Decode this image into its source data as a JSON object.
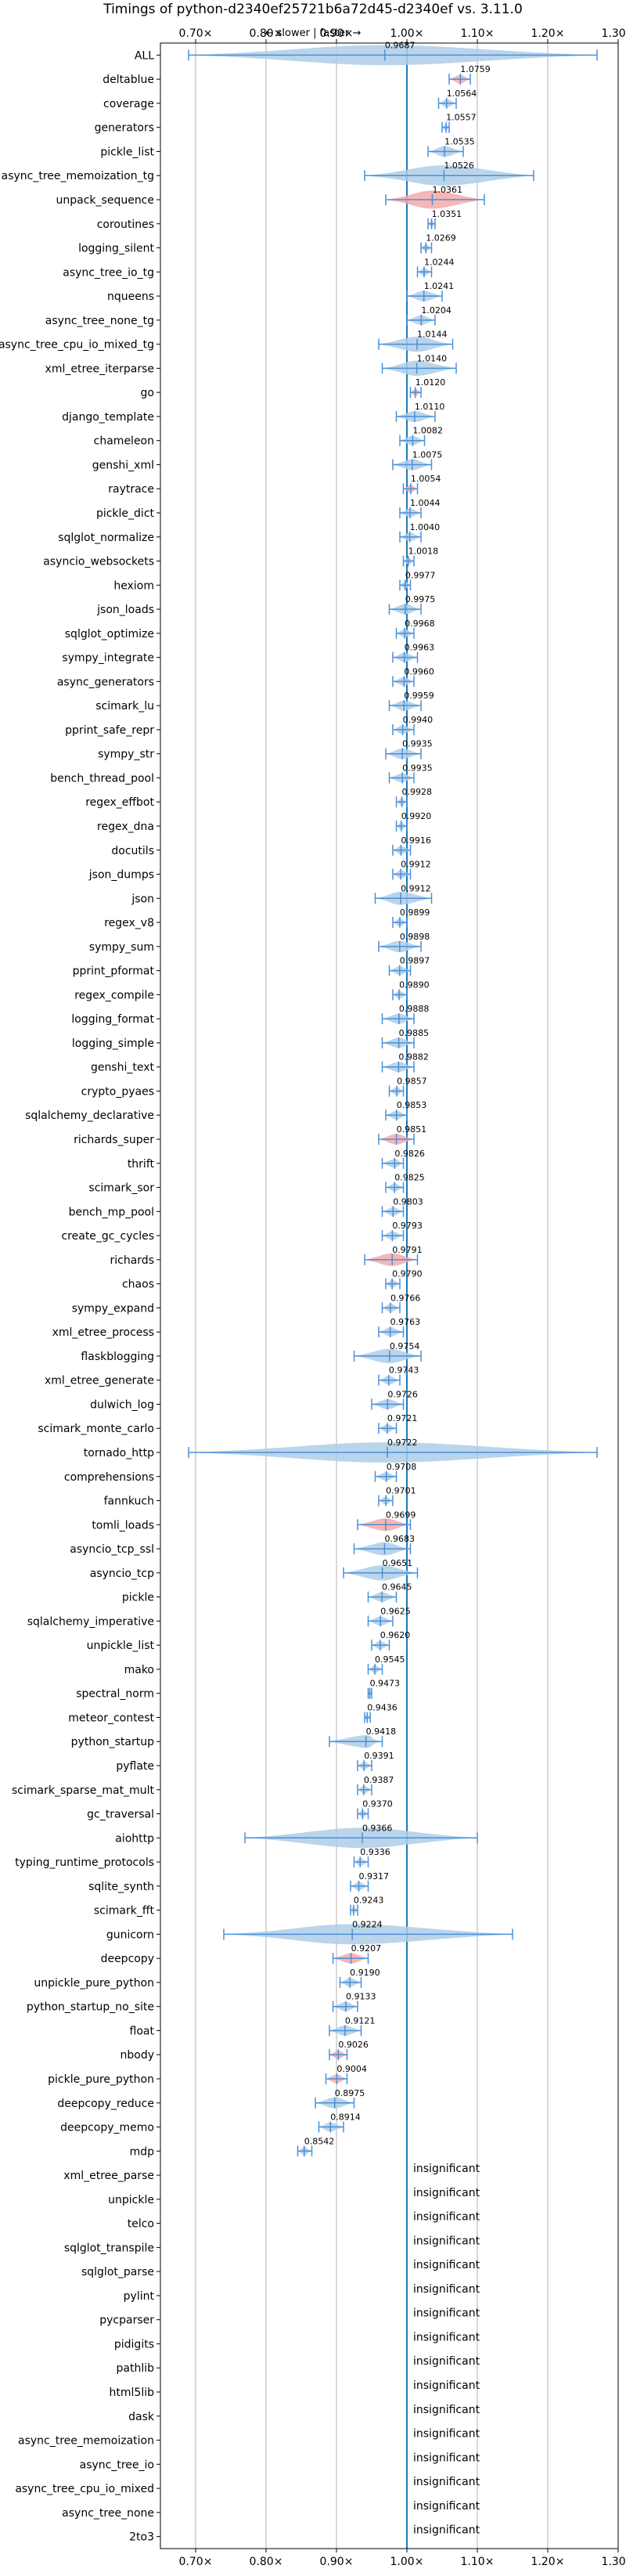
{
  "chart_data": {
    "type": "violin",
    "title": "Timings of python-d2340ef25721b6a72d45-d2340ef vs. 3.11.0",
    "subtitle": "← slower | faster →",
    "xlim": [
      0.65,
      1.3
    ],
    "xticks": [
      "0.70×",
      "0.80×",
      "0.90×",
      "1.00×",
      "1.10×",
      "1.20×",
      "1.30×"
    ],
    "reference_line": 1.0,
    "insignificant_label": "insignificant",
    "colors": {
      "faster": "#4a90d9",
      "violin": "#aecde8",
      "slower": "#f4a9a9",
      "grid": "#b0b0b0"
    },
    "benchmarks": [
      {
        "name": "ALL",
        "value": 0.9687,
        "label": "0.9687",
        "low": 0.69,
        "high": 1.27,
        "slower": false
      },
      {
        "name": "deltablue",
        "value": 1.0759,
        "label": "1.0759",
        "low": 1.06,
        "high": 1.09,
        "slower": true
      },
      {
        "name": "coverage",
        "value": 1.0564,
        "label": "1.0564",
        "low": 1.045,
        "high": 1.07,
        "slower": false
      },
      {
        "name": "generators",
        "value": 1.0557,
        "label": "1.0557",
        "low": 1.05,
        "high": 1.06,
        "slower": false
      },
      {
        "name": "pickle_list",
        "value": 1.0535,
        "label": "1.0535",
        "low": 1.03,
        "high": 1.08,
        "slower": false
      },
      {
        "name": "async_tree_memoization_tg",
        "value": 1.0526,
        "label": "1.0526",
        "low": 0.94,
        "high": 1.18,
        "slower": false
      },
      {
        "name": "unpack_sequence",
        "value": 1.0361,
        "label": "1.0361",
        "low": 0.97,
        "high": 1.11,
        "slower": true
      },
      {
        "name": "coroutines",
        "value": 1.0351,
        "label": "1.0351",
        "low": 1.03,
        "high": 1.04,
        "slower": false
      },
      {
        "name": "logging_silent",
        "value": 1.0269,
        "label": "1.0269",
        "low": 1.02,
        "high": 1.035,
        "slower": false
      },
      {
        "name": "async_tree_io_tg",
        "value": 1.0244,
        "label": "1.0244",
        "low": 1.015,
        "high": 1.035,
        "slower": false
      },
      {
        "name": "nqueens",
        "value": 1.0241,
        "label": "1.0241",
        "low": 1.0,
        "high": 1.05,
        "slower": false
      },
      {
        "name": "async_tree_none_tg",
        "value": 1.0204,
        "label": "1.0204",
        "low": 1.0,
        "high": 1.04,
        "slower": false
      },
      {
        "name": "async_tree_cpu_io_mixed_tg",
        "value": 1.0144,
        "label": "1.0144",
        "low": 0.96,
        "high": 1.065,
        "slower": false
      },
      {
        "name": "xml_etree_iterparse",
        "value": 1.014,
        "label": "1.0140",
        "low": 0.965,
        "high": 1.07,
        "slower": false
      },
      {
        "name": "go",
        "value": 1.012,
        "label": "1.0120",
        "low": 1.005,
        "high": 1.02,
        "slower": true
      },
      {
        "name": "django_template",
        "value": 1.011,
        "label": "1.0110",
        "low": 0.985,
        "high": 1.04,
        "slower": false
      },
      {
        "name": "chameleon",
        "value": 1.0082,
        "label": "1.0082",
        "low": 0.99,
        "high": 1.025,
        "slower": false
      },
      {
        "name": "genshi_xml",
        "value": 1.0075,
        "label": "1.0075",
        "low": 0.98,
        "high": 1.035,
        "slower": false
      },
      {
        "name": "raytrace",
        "value": 1.0054,
        "label": "1.0054",
        "low": 0.995,
        "high": 1.015,
        "slower": true
      },
      {
        "name": "pickle_dict",
        "value": 1.0044,
        "label": "1.0044",
        "low": 0.99,
        "high": 1.02,
        "slower": false
      },
      {
        "name": "sqlglot_normalize",
        "value": 1.004,
        "label": "1.0040",
        "low": 0.99,
        "high": 1.02,
        "slower": false
      },
      {
        "name": "asyncio_websockets",
        "value": 1.0018,
        "label": "1.0018",
        "low": 0.995,
        "high": 1.01,
        "slower": false
      },
      {
        "name": "hexiom",
        "value": 0.9977,
        "label": "0.9977",
        "low": 0.99,
        "high": 1.005,
        "slower": false
      },
      {
        "name": "json_loads",
        "value": 0.9975,
        "label": "0.9975",
        "low": 0.975,
        "high": 1.02,
        "slower": false
      },
      {
        "name": "sqlglot_optimize",
        "value": 0.9968,
        "label": "0.9968",
        "low": 0.985,
        "high": 1.01,
        "slower": false
      },
      {
        "name": "sympy_integrate",
        "value": 0.9963,
        "label": "0.9963",
        "low": 0.98,
        "high": 1.015,
        "slower": false
      },
      {
        "name": "async_generators",
        "value": 0.996,
        "label": "0.9960",
        "low": 0.98,
        "high": 1.01,
        "slower": false
      },
      {
        "name": "scimark_lu",
        "value": 0.9959,
        "label": "0.9959",
        "low": 0.975,
        "high": 1.02,
        "slower": false
      },
      {
        "name": "pprint_safe_repr",
        "value": 0.994,
        "label": "0.9940",
        "low": 0.98,
        "high": 1.01,
        "slower": false
      },
      {
        "name": "sympy_str",
        "value": 0.9935,
        "label": "0.9935",
        "low": 0.97,
        "high": 1.02,
        "slower": false
      },
      {
        "name": "bench_thread_pool",
        "value": 0.9935,
        "label": "0.9935",
        "low": 0.975,
        "high": 1.01,
        "slower": false
      },
      {
        "name": "regex_effbot",
        "value": 0.9928,
        "label": "0.9928",
        "low": 0.985,
        "high": 1.0,
        "slower": false
      },
      {
        "name": "regex_dna",
        "value": 0.992,
        "label": "0.9920",
        "low": 0.985,
        "high": 1.0,
        "slower": false
      },
      {
        "name": "docutils",
        "value": 0.9916,
        "label": "0.9916",
        "low": 0.98,
        "high": 1.005,
        "slower": false
      },
      {
        "name": "json_dumps",
        "value": 0.9912,
        "label": "0.9912",
        "low": 0.98,
        "high": 1.005,
        "slower": false
      },
      {
        "name": "json",
        "value": 0.9912,
        "label": "0.9912",
        "low": 0.955,
        "high": 1.035,
        "slower": false
      },
      {
        "name": "regex_v8",
        "value": 0.9899,
        "label": "0.9899",
        "low": 0.98,
        "high": 1.0,
        "slower": false
      },
      {
        "name": "sympy_sum",
        "value": 0.9898,
        "label": "0.9898",
        "low": 0.96,
        "high": 1.02,
        "slower": false
      },
      {
        "name": "pprint_pformat",
        "value": 0.9897,
        "label": "0.9897",
        "low": 0.975,
        "high": 1.005,
        "slower": false
      },
      {
        "name": "regex_compile",
        "value": 0.989,
        "label": "0.9890",
        "low": 0.98,
        "high": 1.0,
        "slower": false
      },
      {
        "name": "logging_format",
        "value": 0.9888,
        "label": "0.9888",
        "low": 0.965,
        "high": 1.01,
        "slower": false
      },
      {
        "name": "logging_simple",
        "value": 0.9885,
        "label": "0.9885",
        "low": 0.965,
        "high": 1.01,
        "slower": false
      },
      {
        "name": "genshi_text",
        "value": 0.9882,
        "label": "0.9882",
        "low": 0.965,
        "high": 1.01,
        "slower": false
      },
      {
        "name": "crypto_pyaes",
        "value": 0.9857,
        "label": "0.9857",
        "low": 0.975,
        "high": 0.995,
        "slower": false
      },
      {
        "name": "sqlalchemy_declarative",
        "value": 0.9853,
        "label": "0.9853",
        "low": 0.97,
        "high": 1.0,
        "slower": false
      },
      {
        "name": "richards_super",
        "value": 0.9851,
        "label": "0.9851",
        "low": 0.96,
        "high": 1.01,
        "slower": true
      },
      {
        "name": "thrift",
        "value": 0.9826,
        "label": "0.9826",
        "low": 0.965,
        "high": 0.995,
        "slower": false
      },
      {
        "name": "scimark_sor",
        "value": 0.9825,
        "label": "0.9825",
        "low": 0.97,
        "high": 0.995,
        "slower": false
      },
      {
        "name": "bench_mp_pool",
        "value": 0.9803,
        "label": "0.9803",
        "low": 0.965,
        "high": 0.995,
        "slower": false
      },
      {
        "name": "create_gc_cycles",
        "value": 0.9793,
        "label": "0.9793",
        "low": 0.965,
        "high": 0.995,
        "slower": false
      },
      {
        "name": "richards",
        "value": 0.9791,
        "label": "0.9791",
        "low": 0.94,
        "high": 1.015,
        "slower": true
      },
      {
        "name": "chaos",
        "value": 0.979,
        "label": "0.9790",
        "low": 0.97,
        "high": 0.99,
        "slower": false
      },
      {
        "name": "sympy_expand",
        "value": 0.9766,
        "label": "0.9766",
        "low": 0.965,
        "high": 0.99,
        "slower": false
      },
      {
        "name": "xml_etree_process",
        "value": 0.9763,
        "label": "0.9763",
        "low": 0.96,
        "high": 0.995,
        "slower": false
      },
      {
        "name": "flaskblogging",
        "value": 0.9754,
        "label": "0.9754",
        "low": 0.925,
        "high": 1.02,
        "slower": false
      },
      {
        "name": "xml_etree_generate",
        "value": 0.9743,
        "label": "0.9743",
        "low": 0.96,
        "high": 0.99,
        "slower": false
      },
      {
        "name": "dulwich_log",
        "value": 0.9726,
        "label": "0.9726",
        "low": 0.95,
        "high": 0.995,
        "slower": false
      },
      {
        "name": "scimark_monte_carlo",
        "value": 0.9721,
        "label": "0.9721",
        "low": 0.96,
        "high": 0.985,
        "slower": false
      },
      {
        "name": "tornado_http",
        "value": 0.9722,
        "label": "0.9722",
        "low": 0.69,
        "high": 1.27,
        "slower": false
      },
      {
        "name": "comprehensions",
        "value": 0.9708,
        "label": "0.9708",
        "low": 0.955,
        "high": 0.985,
        "slower": false
      },
      {
        "name": "fannkuch",
        "value": 0.9701,
        "label": "0.9701",
        "low": 0.96,
        "high": 0.98,
        "slower": false
      },
      {
        "name": "tomli_loads",
        "value": 0.9699,
        "label": "0.9699",
        "low": 0.93,
        "high": 1.005,
        "slower": true
      },
      {
        "name": "asyncio_tcp_ssl",
        "value": 0.9683,
        "label": "0.9683",
        "low": 0.925,
        "high": 1.005,
        "slower": false
      },
      {
        "name": "asyncio_tcp",
        "value": 0.9651,
        "label": "0.9651",
        "low": 0.91,
        "high": 1.015,
        "slower": false
      },
      {
        "name": "pickle",
        "value": 0.9645,
        "label": "0.9645",
        "low": 0.945,
        "high": 0.985,
        "slower": false
      },
      {
        "name": "sqlalchemy_imperative",
        "value": 0.9625,
        "label": "0.9625",
        "low": 0.945,
        "high": 0.98,
        "slower": false
      },
      {
        "name": "unpickle_list",
        "value": 0.962,
        "label": "0.9620",
        "low": 0.95,
        "high": 0.975,
        "slower": false
      },
      {
        "name": "mako",
        "value": 0.9545,
        "label": "0.9545",
        "low": 0.945,
        "high": 0.965,
        "slower": false
      },
      {
        "name": "spectral_norm",
        "value": 0.9473,
        "label": "0.9473",
        "low": 0.945,
        "high": 0.95,
        "slower": false
      },
      {
        "name": "meteor_contest",
        "value": 0.9436,
        "label": "0.9436",
        "low": 0.94,
        "high": 0.948,
        "slower": false
      },
      {
        "name": "python_startup",
        "value": 0.9418,
        "label": "0.9418",
        "low": 0.89,
        "high": 0.965,
        "slower": false
      },
      {
        "name": "pyflate",
        "value": 0.9391,
        "label": "0.9391",
        "low": 0.93,
        "high": 0.95,
        "slower": false
      },
      {
        "name": "scimark_sparse_mat_mult",
        "value": 0.9387,
        "label": "0.9387",
        "low": 0.93,
        "high": 0.95,
        "slower": false
      },
      {
        "name": "gc_traversal",
        "value": 0.937,
        "label": "0.9370",
        "low": 0.93,
        "high": 0.945,
        "slower": false
      },
      {
        "name": "aiohttp",
        "value": 0.9366,
        "label": "0.9366",
        "low": 0.77,
        "high": 1.1,
        "slower": false
      },
      {
        "name": "typing_runtime_protocols",
        "value": 0.9336,
        "label": "0.9336",
        "low": 0.925,
        "high": 0.945,
        "slower": false
      },
      {
        "name": "sqlite_synth",
        "value": 0.9317,
        "label": "0.9317",
        "low": 0.92,
        "high": 0.945,
        "slower": false
      },
      {
        "name": "scimark_fft",
        "value": 0.9243,
        "label": "0.9243",
        "low": 0.92,
        "high": 0.93,
        "slower": false
      },
      {
        "name": "gunicorn",
        "value": 0.9224,
        "label": "0.9224",
        "low": 0.74,
        "high": 1.15,
        "slower": false
      },
      {
        "name": "deepcopy",
        "value": 0.9207,
        "label": "0.9207",
        "low": 0.895,
        "high": 0.945,
        "slower": true
      },
      {
        "name": "unpickle_pure_python",
        "value": 0.919,
        "label": "0.9190",
        "low": 0.905,
        "high": 0.935,
        "slower": false
      },
      {
        "name": "python_startup_no_site",
        "value": 0.9133,
        "label": "0.9133",
        "low": 0.895,
        "high": 0.93,
        "slower": false
      },
      {
        "name": "float",
        "value": 0.9121,
        "label": "0.9121",
        "low": 0.89,
        "high": 0.935,
        "slower": false
      },
      {
        "name": "nbody",
        "value": 0.9026,
        "label": "0.9026",
        "low": 0.89,
        "high": 0.915,
        "slower": true
      },
      {
        "name": "pickle_pure_python",
        "value": 0.9004,
        "label": "0.9004",
        "low": 0.885,
        "high": 0.915,
        "slower": true
      },
      {
        "name": "deepcopy_reduce",
        "value": 0.8975,
        "label": "0.8975",
        "low": 0.87,
        "high": 0.925,
        "slower": false
      },
      {
        "name": "deepcopy_memo",
        "value": 0.8914,
        "label": "0.8914",
        "low": 0.875,
        "high": 0.91,
        "slower": false
      },
      {
        "name": "mdp",
        "value": 0.8542,
        "label": "0.8542",
        "low": 0.845,
        "high": 0.865,
        "slower": false
      },
      {
        "name": "xml_etree_parse",
        "insignificant": true
      },
      {
        "name": "unpickle",
        "insignificant": true
      },
      {
        "name": "telco",
        "insignificant": true
      },
      {
        "name": "sqlglot_transpile",
        "insignificant": true
      },
      {
        "name": "sqlglot_parse",
        "insignificant": true
      },
      {
        "name": "pylint",
        "insignificant": true
      },
      {
        "name": "pycparser",
        "insignificant": true
      },
      {
        "name": "pidigits",
        "insignificant": true
      },
      {
        "name": "pathlib",
        "insignificant": true
      },
      {
        "name": "html5lib",
        "insignificant": true
      },
      {
        "name": "dask",
        "insignificant": true
      },
      {
        "name": "async_tree_memoization",
        "insignificant": true
      },
      {
        "name": "async_tree_io",
        "insignificant": true
      },
      {
        "name": "async_tree_cpu_io_mixed",
        "insignificant": true
      },
      {
        "name": "async_tree_none",
        "insignificant": true
      },
      {
        "name": "2to3",
        "insignificant": true
      }
    ]
  }
}
